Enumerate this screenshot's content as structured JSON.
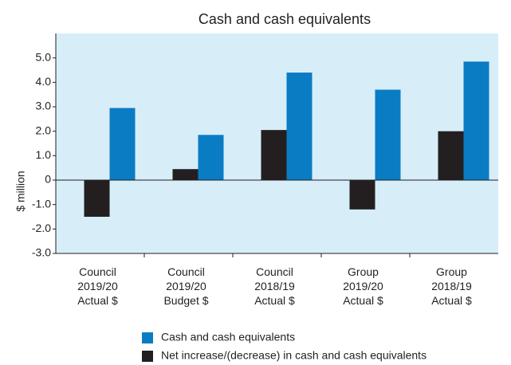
{
  "chart_data": {
    "type": "bar",
    "title": "Cash and cash equivalents",
    "y_label": "$ million",
    "categories": [
      "Council\n2019/20\nActual $",
      "Council\n2019/20\nBudget $",
      "Council\n2018/19\nActual $",
      "Group\n2019/20\nActual $",
      "Group\n2018/19\nActual $"
    ],
    "series": [
      {
        "name": "Cash and cash equivalents",
        "color": "#0a7cc4",
        "values": [
          2.95,
          1.85,
          4.4,
          3.7,
          4.85
        ]
      },
      {
        "name": "Net increase/(decrease) in cash and cash equivalents",
        "color": "#231f20",
        "values": [
          -1.5,
          0.45,
          2.05,
          -1.2,
          2.0
        ]
      }
    ],
    "ylim": [
      -3,
      6
    ],
    "yticks": [
      {
        "value": -3,
        "label": "-3.0"
      },
      {
        "value": -2,
        "label": "-2.0"
      },
      {
        "value": -1,
        "label": "-1.0"
      },
      0,
      {
        "value": 1,
        "label": "1.0"
      },
      {
        "value": 2,
        "label": "2.0"
      },
      {
        "value": 3,
        "label": "3.0"
      },
      {
        "value": 4,
        "label": "4.0"
      },
      {
        "value": 5,
        "label": "5.0"
      }
    ],
    "legend": "bottom"
  }
}
